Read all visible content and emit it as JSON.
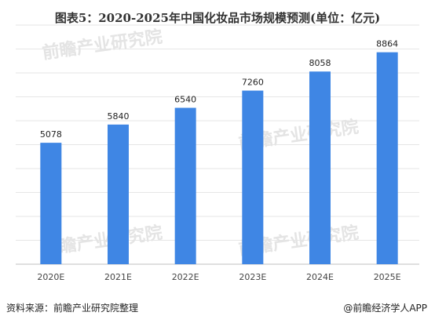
{
  "chart_data": {
    "type": "bar",
    "title": "图表5：2020-2025年中国化妆品市场规模预测(单位：亿元)",
    "categories": [
      "2020E",
      "2021E",
      "2022E",
      "2023E",
      "2024E",
      "2025E"
    ],
    "values": [
      5078,
      5840,
      6540,
      7260,
      8058,
      8864
    ],
    "ylim": [
      0,
      10000
    ],
    "ylabel": "",
    "xlabel": "",
    "bar_color": "#3F86E4",
    "grid": true,
    "legend": "none"
  },
  "footer": {
    "source": "资料来源：前瞻产业研究院整理",
    "brand": "@前瞻经济学人APP"
  },
  "watermark": {
    "text": "前瞻产业研究院",
    "color": "#E4E4E4"
  }
}
